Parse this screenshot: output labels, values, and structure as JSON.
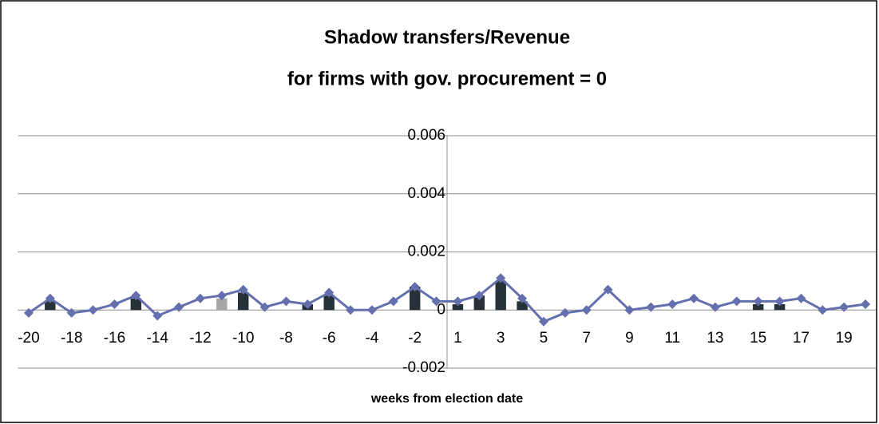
{
  "chart_data": {
    "type": "combo",
    "title": "Shadow transfers/Revenue",
    "subtitle": "for firms with gov. procurement = 0",
    "x_label": "weeks from election date",
    "categories": [
      -20,
      null,
      -18,
      null,
      -16,
      null,
      -14,
      null,
      -12,
      null,
      -10,
      null,
      -8,
      null,
      -6,
      null,
      -4,
      null,
      -2,
      null,
      1,
      null,
      3,
      null,
      5,
      null,
      7,
      null,
      9,
      null,
      11,
      null,
      13,
      null,
      15,
      null,
      17,
      null,
      19,
      null
    ],
    "series": [
      {
        "type": "bar",
        "color": "#263238",
        "values": [
          null,
          0.0003,
          null,
          null,
          null,
          0.0004,
          null,
          null,
          null,
          null,
          0.0006,
          null,
          null,
          0.0002,
          0.0005,
          null,
          null,
          null,
          0.0008,
          null,
          0.0002,
          0.0005,
          0.001,
          0.0003,
          null,
          null,
          null,
          null,
          null,
          null,
          null,
          null,
          null,
          null,
          0.0002,
          0.0002,
          null,
          null,
          null,
          null
        ]
      },
      {
        "type": "bar",
        "color": "#a6a6a6",
        "values": [
          null,
          null,
          null,
          null,
          null,
          null,
          null,
          null,
          null,
          0.0004,
          null,
          null,
          null,
          null,
          null,
          null,
          null,
          null,
          null,
          null,
          null,
          null,
          null,
          null,
          null,
          null,
          null,
          null,
          null,
          null,
          null,
          null,
          null,
          null,
          null,
          null,
          null,
          null,
          null,
          null
        ]
      },
      {
        "type": "line",
        "color": "#6470ad",
        "values": [
          -0.0001,
          0.0004,
          -0.0001,
          0,
          0.0002,
          0.0005,
          -0.0002,
          0.0001,
          0.0004,
          0.0005,
          0.0007,
          0.0001,
          0.0003,
          0.0002,
          0.0006,
          0,
          0,
          0.0003,
          0.0008,
          0.0003,
          0.0003,
          0.0005,
          0.0011,
          0.0004,
          -0.0004,
          -0.0001,
          0,
          0.0007,
          0,
          0.0001,
          0.0002,
          0.0004,
          0.0001,
          0.0003,
          0.0003,
          0.0003,
          0.0004,
          0,
          0.0001,
          0.0002
        ]
      }
    ],
    "ylim": [
      -0.002,
      0.006
    ],
    "yticks": [
      -0.002,
      0,
      0.002,
      0.004,
      0.006
    ],
    "grid": true
  }
}
